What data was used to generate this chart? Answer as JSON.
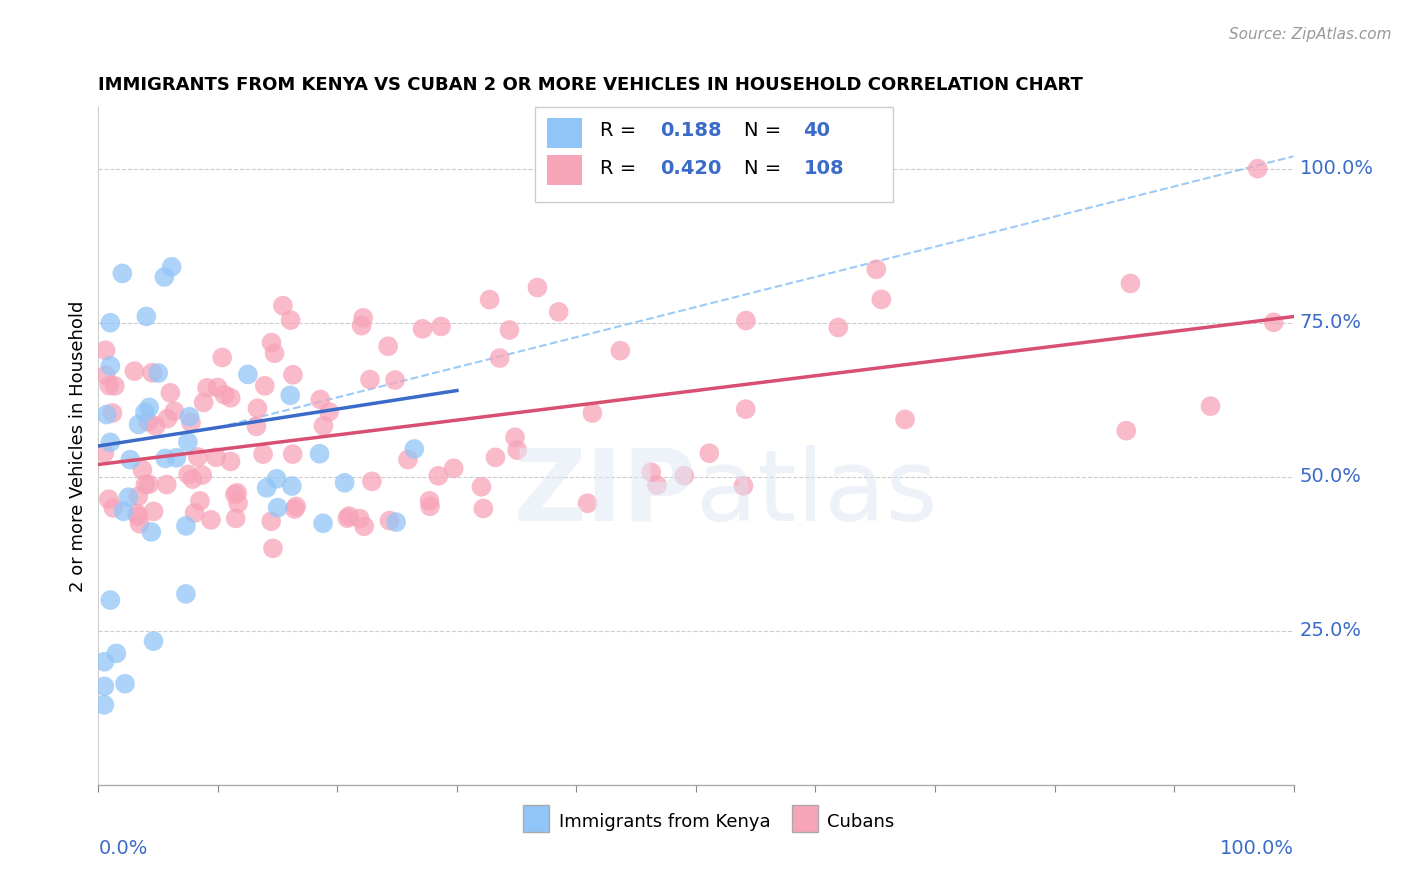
{
  "title": "IMMIGRANTS FROM KENYA VS CUBAN 2 OR MORE VEHICLES IN HOUSEHOLD CORRELATION CHART",
  "source": "Source: ZipAtlas.com",
  "ylabel": "2 or more Vehicles in Household",
  "xlim": [
    0.0,
    1.0
  ],
  "ylim": [
    0.0,
    1.1
  ],
  "ytick_labels": [
    "25.0%",
    "50.0%",
    "75.0%",
    "100.0%"
  ],
  "ytick_values": [
    0.25,
    0.5,
    0.75,
    1.0
  ],
  "kenya_color": "#92c5f7",
  "cuban_color": "#f7a3b8",
  "kenya_line_color": "#3b6bc8",
  "cuban_line_color": "#d94f72",
  "dashed_line_color": "#92c5f7",
  "kenya_R": 0.188,
  "kenya_N": 40,
  "cuban_R": 0.42,
  "cuban_N": 108,
  "watermark_zip": "ZIP",
  "watermark_atlas": "atlas"
}
